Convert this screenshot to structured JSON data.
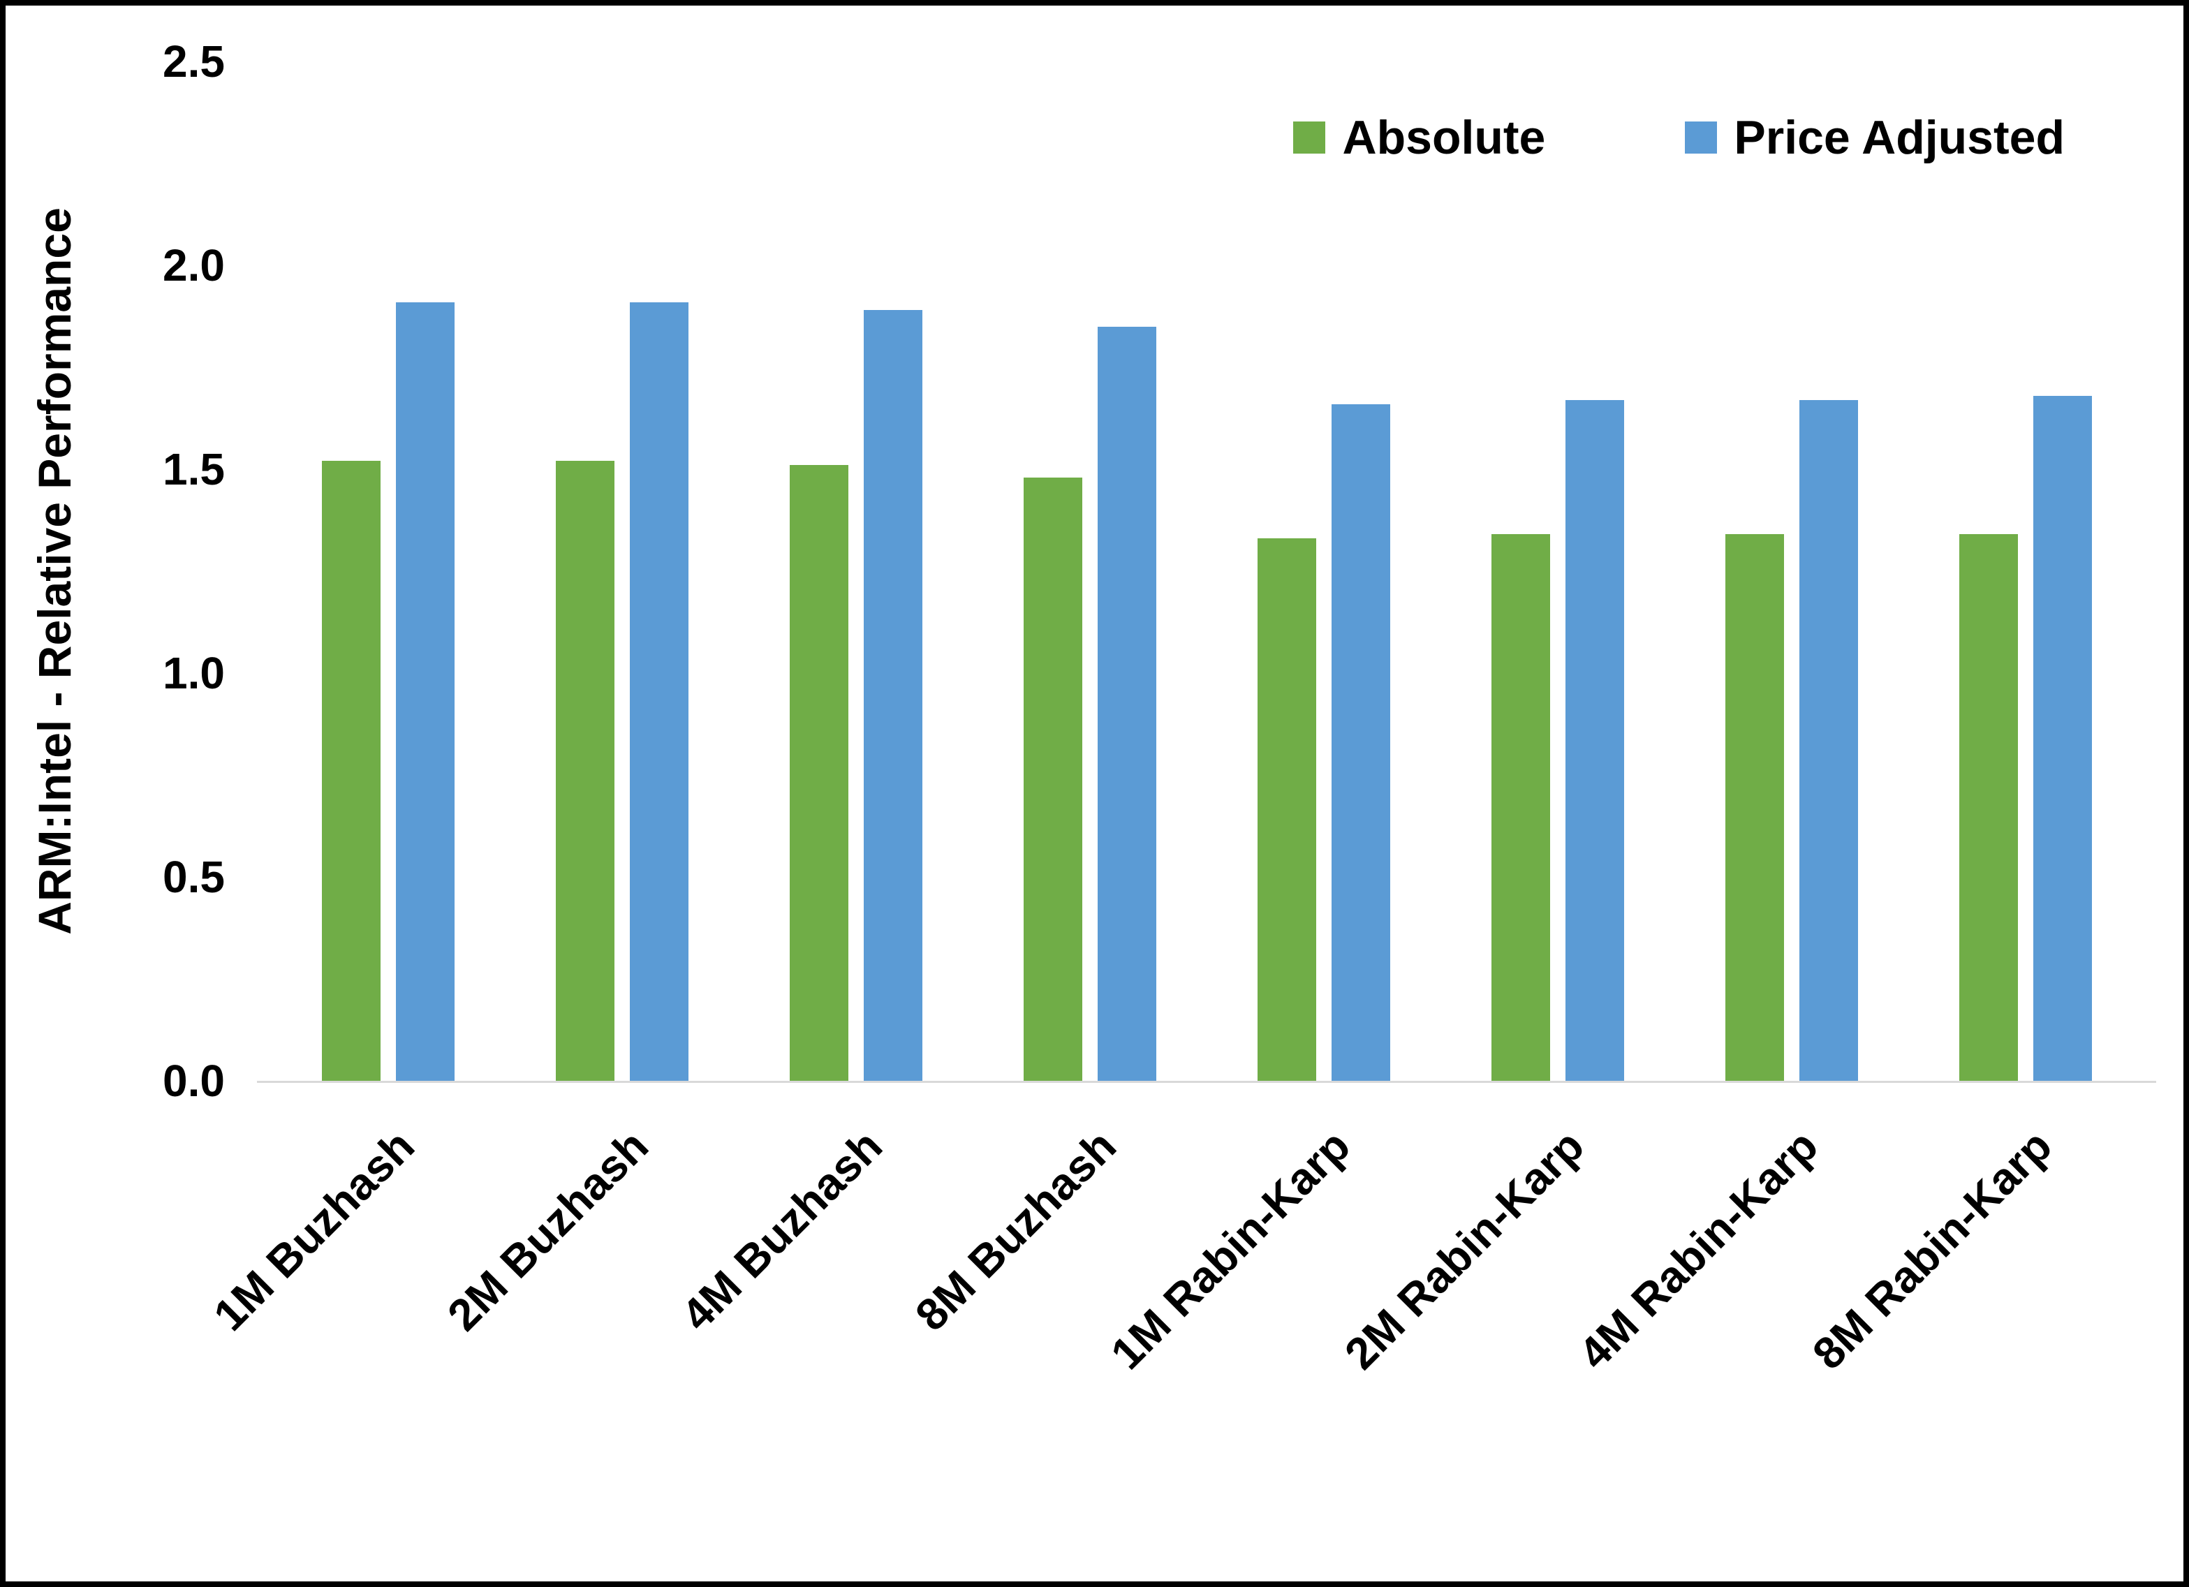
{
  "chart_data": {
    "type": "bar",
    "title": "",
    "xlabel": "",
    "ylabel": "ARM:Intel - Relative Performance",
    "ylim": [
      0,
      2.5
    ],
    "yticks": [
      0.0,
      0.5,
      1.0,
      1.5,
      2.0,
      2.5
    ],
    "ytick_labels": [
      "0.0",
      "0.5",
      "1.0",
      "1.5",
      "2.0",
      "2.5"
    ],
    "grid": false,
    "legend_position": "top-right",
    "categories": [
      "1M Buzhash",
      "2M Buzhash",
      "4M Buzhash",
      "8M Buzhash",
      "1M Rabin-Karp",
      "2M Rabin-Karp",
      "4M Rabin-Karp",
      "8M Rabin-Karp"
    ],
    "series": [
      {
        "name": "Absolute",
        "color": "#70AD47",
        "values": [
          1.52,
          1.52,
          1.51,
          1.48,
          1.33,
          1.34,
          1.34,
          1.34
        ]
      },
      {
        "name": "Price Adjusted",
        "color": "#5B9BD5",
        "values": [
          1.91,
          1.91,
          1.89,
          1.85,
          1.66,
          1.67,
          1.67,
          1.68
        ]
      }
    ]
  }
}
